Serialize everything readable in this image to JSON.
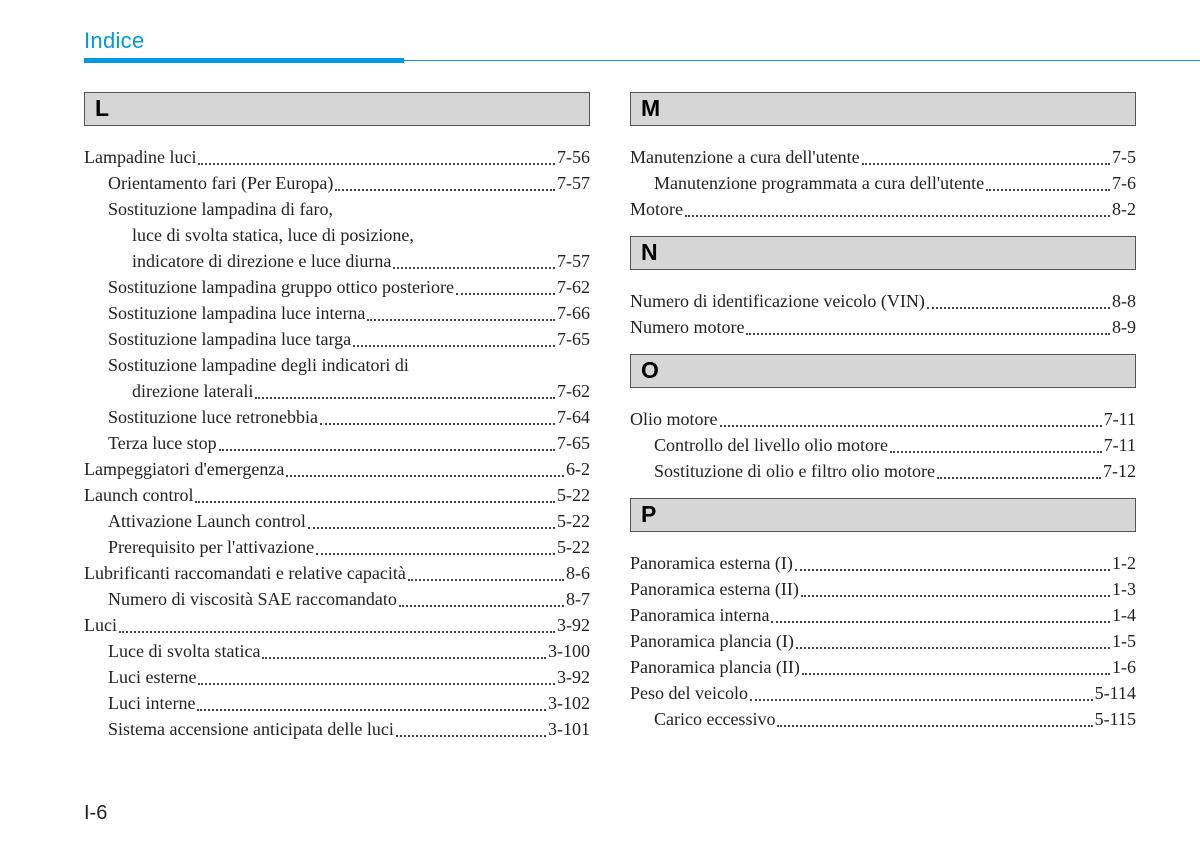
{
  "title": "Indice",
  "page_number": "I-6",
  "colors": {
    "accent": "#0099e0",
    "section_bg": "#d6d6d6",
    "section_border": "#555555",
    "text": "#222222",
    "background": "#ffffff"
  },
  "typography": {
    "title_font": "Arial/Helvetica",
    "title_size_pt": 17,
    "body_font": "Georgia/Times",
    "body_size_pt": 13,
    "section_letter_size_pt": 17
  },
  "left_column": [
    {
      "letter": "L",
      "entries": [
        {
          "label": "Lampadine luci",
          "page": "7-56",
          "indent": 0
        },
        {
          "label": "Orientamento fari (Per Europa)",
          "page": "7-57",
          "indent": 1
        },
        {
          "label": "Sostituzione lampadina di faro,",
          "page": null,
          "indent": 1
        },
        {
          "label": "luce di svolta statica, luce di posizione,",
          "page": null,
          "indent": 2
        },
        {
          "label": "indicatore di direzione e luce diurna",
          "page": "7-57",
          "indent": 2
        },
        {
          "label": "Sostituzione lampadina gruppo ottico posteriore",
          "page": "7-62",
          "indent": 1
        },
        {
          "label": "Sostituzione lampadina luce interna",
          "page": "7-66",
          "indent": 1
        },
        {
          "label": "Sostituzione lampadina luce targa",
          "page": "7-65",
          "indent": 1
        },
        {
          "label": "Sostituzione lampadine degli indicatori di",
          "page": null,
          "indent": 1
        },
        {
          "label": "direzione laterali",
          "page": "7-62",
          "indent": 2
        },
        {
          "label": "Sostituzione luce retronebbia",
          "page": "7-64",
          "indent": 1
        },
        {
          "label": "Terza luce stop",
          "page": "7-65",
          "indent": 1
        },
        {
          "label": "Lampeggiatori d'emergenza",
          "page": "6-2",
          "indent": 0
        },
        {
          "label": "Launch control",
          "page": "5-22",
          "indent": 0
        },
        {
          "label": "Attivazione Launch control",
          "page": "5-22",
          "indent": 1
        },
        {
          "label": "Prerequisito per l'attivazione",
          "page": "5-22",
          "indent": 1
        },
        {
          "label": "Lubrificanti raccomandati e relative capacità",
          "page": "8-6",
          "indent": 0
        },
        {
          "label": "Numero di viscosità SAE raccomandato",
          "page": "8-7",
          "indent": 1
        },
        {
          "label": "Luci",
          "page": "3-92",
          "indent": 0
        },
        {
          "label": "Luce di svolta statica",
          "page": "3-100",
          "indent": 1
        },
        {
          "label": "Luci esterne",
          "page": "3-92",
          "indent": 1
        },
        {
          "label": "Luci interne",
          "page": "3-102",
          "indent": 1
        },
        {
          "label": "Sistema accensione anticipata delle luci",
          "page": "3-101",
          "indent": 1
        }
      ]
    }
  ],
  "right_column": [
    {
      "letter": "M",
      "entries": [
        {
          "label": "Manutenzione a cura dell'utente",
          "page": "7-5",
          "indent": 0
        },
        {
          "label": "Manutenzione programmata a cura dell'utente",
          "page": "7-6",
          "indent": 1
        },
        {
          "label": "Motore",
          "page": "8-2",
          "indent": 0
        }
      ]
    },
    {
      "letter": "N",
      "entries": [
        {
          "label": "Numero di identificazione veicolo (VIN)",
          "page": "8-8",
          "indent": 0
        },
        {
          "label": "Numero motore",
          "page": "8-9",
          "indent": 0
        }
      ]
    },
    {
      "letter": "O",
      "entries": [
        {
          "label": "Olio motore",
          "page": "7-11",
          "indent": 0
        },
        {
          "label": "Controllo del livello olio motore",
          "page": "7-11",
          "indent": 1
        },
        {
          "label": "Sostituzione di olio e filtro olio motore",
          "page": "7-12",
          "indent": 1
        }
      ]
    },
    {
      "letter": "P",
      "entries": [
        {
          "label": "Panoramica esterna (I)",
          "page": "1-2",
          "indent": 0
        },
        {
          "label": "Panoramica esterna (II)",
          "page": "1-3",
          "indent": 0
        },
        {
          "label": "Panoramica interna",
          "page": "1-4",
          "indent": 0
        },
        {
          "label": "Panoramica plancia (I)",
          "page": "1-5",
          "indent": 0
        },
        {
          "label": "Panoramica plancia (II)",
          "page": "1-6",
          "indent": 0
        },
        {
          "label": "Peso del veicolo",
          "page": "5-114",
          "indent": 0
        },
        {
          "label": "Carico eccessivo",
          "page": "5-115",
          "indent": 1
        }
      ]
    }
  ]
}
